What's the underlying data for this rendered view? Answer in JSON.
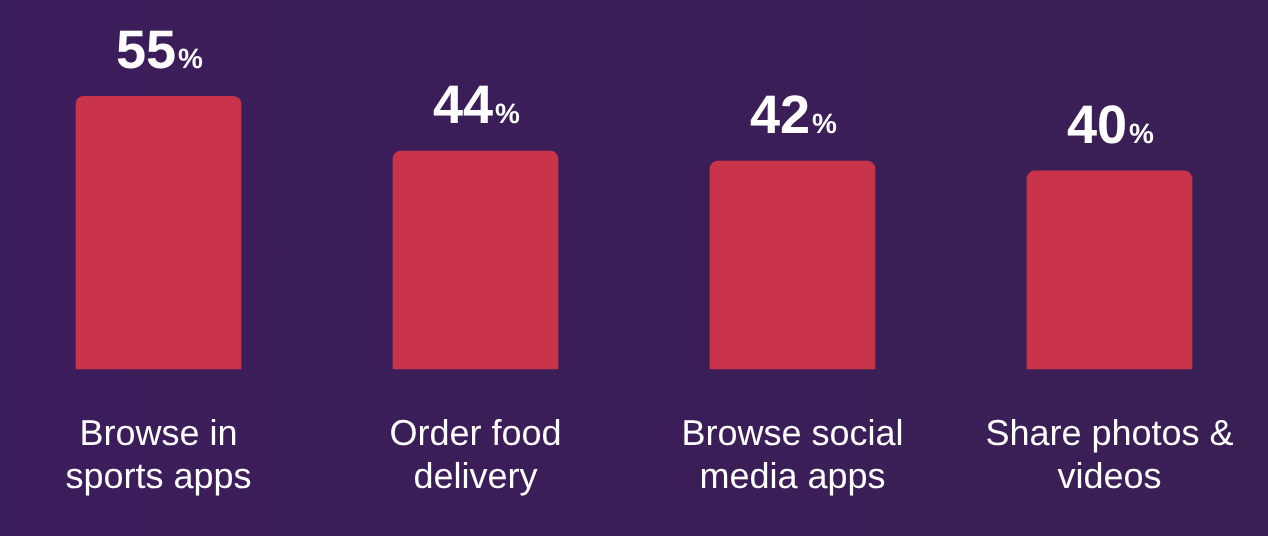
{
  "chart_data": {
    "type": "bar",
    "categories": [
      "Browse in sports apps",
      "Order food delivery",
      "Browse social media apps",
      "Share photos & videos"
    ],
    "values": [
      55,
      44,
      42,
      40
    ],
    "color": "#c9344a",
    "value_labels": [
      "55%",
      "44%",
      "42%",
      "40%"
    ],
    "grid": false,
    "legend": false
  }
}
